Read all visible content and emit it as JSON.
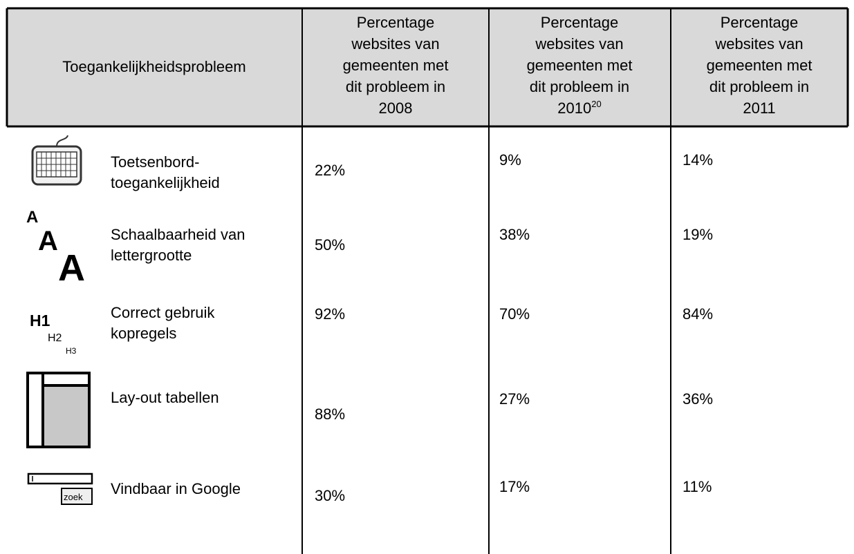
{
  "table": {
    "header": [
      {
        "lines": [
          "Toegankelijkheidsprobleem"
        ]
      },
      {
        "lines": [
          "Percentage",
          "websites van",
          "gemeenten met",
          "dit probleem in",
          "2008"
        ]
      },
      {
        "lines": [
          "Percentage",
          "websites van",
          "gemeenten met",
          "dit probleem in",
          "2010"
        ],
        "footnote": "20"
      },
      {
        "lines": [
          "Percentage",
          "websites van",
          "gemeenten met",
          "dit probleem in",
          "2011"
        ]
      }
    ],
    "rows": [
      {
        "label": [
          "Toetsenbord-",
          "toegankelijkheid"
        ],
        "values": [
          "22%",
          "9%",
          "14%"
        ]
      },
      {
        "label": [
          "Schaalbaarheid van",
          "lettergrootte"
        ],
        "icon": [
          "A",
          "A",
          "A"
        ],
        "values": [
          "50%",
          "38%",
          "19%"
        ]
      },
      {
        "label": [
          "Correct gebruik",
          "kopregels"
        ],
        "icon": [
          "H1",
          "H2",
          "H3"
        ],
        "values": [
          "92%",
          "70%",
          "84%"
        ]
      },
      {
        "label": [
          "Lay-out tabellen"
        ],
        "values": [
          "88%",
          "27%",
          "36%"
        ]
      },
      {
        "label": [
          "Vindbaar in Google"
        ],
        "icon": [
          "zoek"
        ],
        "values": [
          "30%",
          "17%",
          "11%"
        ]
      }
    ]
  }
}
